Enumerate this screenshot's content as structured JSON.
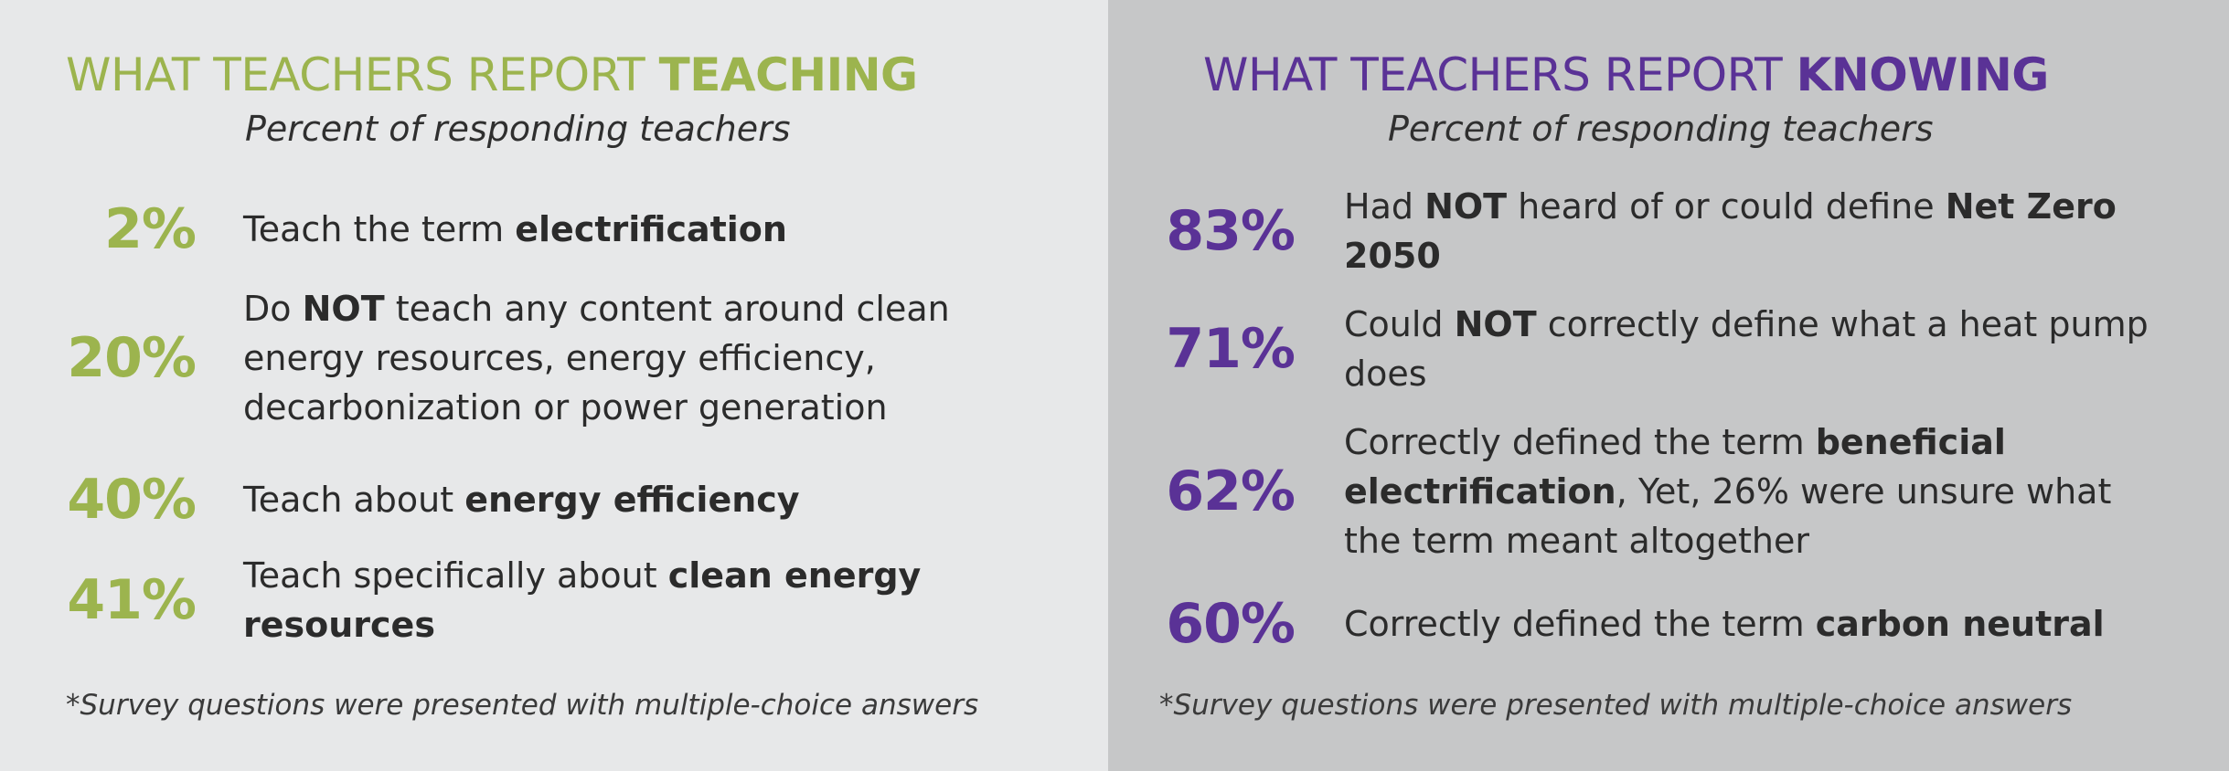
{
  "teaching": {
    "title_lead": "WHAT TEACHERS REPORT ",
    "title_emph": "TEACHING",
    "subtitle": "Percent of responding teachers",
    "accent_color": "#9cb44e",
    "rows": [
      {
        "pct": "2%",
        "t1": "Teach the term ",
        "b1": "electrification",
        "t2": "",
        "b2": "",
        "t3": ""
      },
      {
        "pct": "20%",
        "t1": "Do ",
        "b1": "NOT",
        "t2": " teach any content around clean energy resources, energy efficiency, decarbonization or power generation",
        "b2": "",
        "t3": ""
      },
      {
        "pct": "40%",
        "t1": "Teach about ",
        "b1": "energy efficiency",
        "t2": "",
        "b2": "",
        "t3": ""
      },
      {
        "pct": "41%",
        "t1": "Teach specifically about ",
        "b1": "clean energy resources",
        "t2": "",
        "b2": "",
        "t3": ""
      }
    ],
    "footnote": "*Survey questions were presented with multiple-choice answers"
  },
  "knowing": {
    "title_lead": "WHAT TEACHERS REPORT ",
    "title_emph": "KNOWING",
    "subtitle": "Percent of responding teachers",
    "accent_color": "#5a3296",
    "rows": [
      {
        "pct": "83%",
        "t1": "Had ",
        "b1": "NOT",
        "t2": " heard of or could define ",
        "b2": "Net Zero 2050",
        "t3": ""
      },
      {
        "pct": "71%",
        "t1": "Could ",
        "b1": "NOT",
        "t2": " correctly define what a heat pump does",
        "b2": "",
        "t3": ""
      },
      {
        "pct": "62%",
        "t1": "Correctly defined the term ",
        "b1": "beneficial electrification",
        "t2": ", Yet, 26% were unsure what the term meant altogether",
        "b2": "",
        "t3": ""
      },
      {
        "pct": "60%",
        "t1": "Correctly defined the term ",
        "b1": "carbon neutral",
        "t2": "",
        "b2": "",
        "t3": ""
      }
    ],
    "footnote": "*Survey questions were presented with multiple-choice answers"
  }
}
